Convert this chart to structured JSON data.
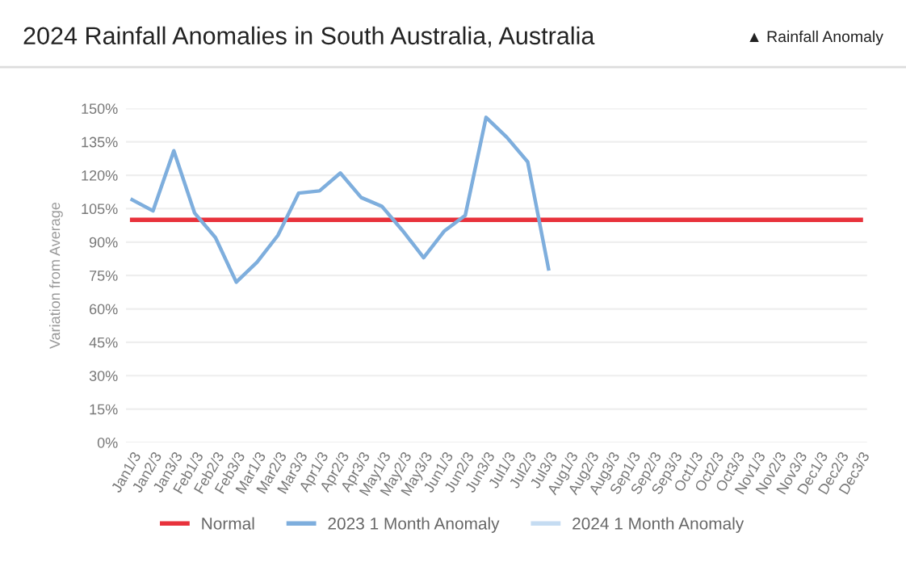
{
  "chart_data": {
    "type": "line",
    "title": "2024 Rainfall Anomalies in South Australia, Australia",
    "ylabel": "Variation from Average",
    "annotations": [
      "▲ Rainfall Anomaly"
    ],
    "categories": [
      "Jan1/3",
      "Jan2/3",
      "Jan3/3",
      "Feb1/3",
      "Feb2/3",
      "Feb3/3",
      "Mar1/3",
      "Mar2/3",
      "Mar3/3",
      "Apr1/3",
      "Apr2/3",
      "Apr3/3",
      "May1/3",
      "May2/3",
      "May3/3",
      "Jun1/3",
      "Jun2/3",
      "Jun3/3",
      "Jul1/3",
      "Jul2/3",
      "Jul3/3",
      "Aug1/3",
      "Aug2/3",
      "Aug3/3",
      "Sep1/3",
      "Sep2/3",
      "Sep3/3",
      "Oct1/3",
      "Oct2/3",
      "Oct3/3",
      "Nov1/3",
      "Nov2/3",
      "Nov3/3",
      "Dec1/3",
      "Dec2/3",
      "Dec3/3"
    ],
    "series": [
      {
        "name": "Normal",
        "color": "#e8323c",
        "values": [
          100,
          100,
          100,
          100,
          100,
          100,
          100,
          100,
          100,
          100,
          100,
          100,
          100,
          100,
          100,
          100,
          100,
          100,
          100,
          100,
          100,
          100,
          100,
          100,
          100,
          100,
          100,
          100,
          100,
          100,
          100,
          100,
          100,
          100,
          100,
          100
        ]
      },
      {
        "name": "2023 1 Month Anomaly",
        "color": "#7eaedd",
        "values": [
          109,
          104,
          131,
          103,
          92,
          72,
          81,
          93,
          112,
          113,
          121,
          110,
          106,
          95,
          83,
          95,
          102,
          146,
          137,
          126,
          78,
          null,
          null,
          null,
          null,
          null,
          null,
          null,
          null,
          null,
          null,
          null,
          null,
          null,
          null,
          null
        ]
      },
      {
        "name": "2024 1 Month Anomaly",
        "color": "#c5dcf2",
        "values": [
          null,
          null,
          null,
          null,
          null,
          null,
          null,
          null,
          null,
          null,
          null,
          null,
          null,
          null,
          null,
          null,
          null,
          null,
          null,
          null,
          null,
          null,
          null,
          null,
          null,
          null,
          null,
          null,
          null,
          null,
          null,
          null,
          null,
          null,
          null,
          null
        ]
      }
    ],
    "ylim": [
      0,
      150
    ],
    "yticks": [
      {
        "value": 0,
        "label": "0%"
      },
      {
        "value": 15,
        "label": "15%"
      },
      {
        "value": 30,
        "label": "30%"
      },
      {
        "value": 45,
        "label": "45%"
      },
      {
        "value": 60,
        "label": "60%"
      },
      {
        "value": 75,
        "label": "75%"
      },
      {
        "value": 90,
        "label": "90%"
      },
      {
        "value": 105,
        "label": "105%"
      },
      {
        "value": 120,
        "label": "120%"
      },
      {
        "value": 135,
        "label": "135%"
      },
      {
        "value": 150,
        "label": "150%"
      }
    ],
    "grid": "y",
    "legend": "bottom",
    "marker": "none",
    "line_style": "solid"
  }
}
